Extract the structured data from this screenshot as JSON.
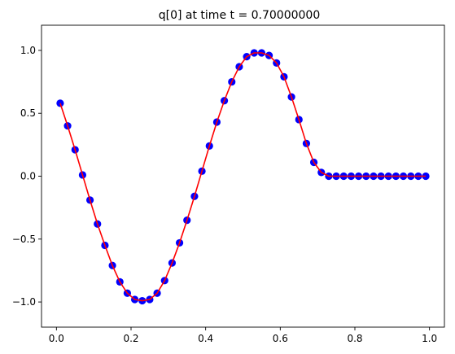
{
  "chart_data": {
    "type": "scatter",
    "title": "q[0] at time t =      0.70000000",
    "xlabel": "",
    "ylabel": "",
    "xlim": [
      -0.04,
      1.04
    ],
    "ylim": [
      -1.2,
      1.2
    ],
    "xticks": [
      0.0,
      0.2,
      0.4,
      0.6,
      0.8,
      1.0
    ],
    "xtick_labels": [
      "0.0",
      "0.2",
      "0.4",
      "0.6",
      "0.8",
      "1.0"
    ],
    "yticks": [
      -1.0,
      -0.5,
      0.0,
      0.5,
      1.0
    ],
    "ytick_labels": [
      "−1.0",
      "−0.5",
      "0.0",
      "0.5",
      "1.0"
    ],
    "grid": false,
    "series": [
      {
        "style": "markers",
        "color": "#0000ff",
        "x": [
          0.01,
          0.03,
          0.05,
          0.07,
          0.09,
          0.11,
          0.13,
          0.15,
          0.17,
          0.19,
          0.21,
          0.23,
          0.25,
          0.27,
          0.29,
          0.31,
          0.33,
          0.35,
          0.37,
          0.39,
          0.41,
          0.43,
          0.45,
          0.47,
          0.49,
          0.51,
          0.53,
          0.55,
          0.57,
          0.59,
          0.61,
          0.63,
          0.65,
          0.67,
          0.69,
          0.71,
          0.73,
          0.75,
          0.77,
          0.79,
          0.81,
          0.83,
          0.85,
          0.87,
          0.89,
          0.91,
          0.93,
          0.95,
          0.97,
          0.99
        ],
        "y": [
          0.58,
          0.4,
          0.21,
          0.01,
          -0.19,
          -0.38,
          -0.55,
          -0.71,
          -0.84,
          -0.93,
          -0.98,
          -0.99,
          -0.98,
          -0.93,
          -0.83,
          -0.69,
          -0.53,
          -0.35,
          -0.16,
          0.04,
          0.24,
          0.43,
          0.6,
          0.75,
          0.87,
          0.95,
          0.98,
          0.98,
          0.96,
          0.9,
          0.79,
          0.63,
          0.45,
          0.26,
          0.11,
          0.03,
          0.0,
          0.0,
          0.0,
          0.0,
          0.0,
          0.0,
          0.0,
          0.0,
          0.0,
          0.0,
          0.0,
          0.0,
          0.0,
          0.0
        ]
      },
      {
        "style": "line",
        "color": "#ff0000",
        "x": [
          0.01,
          0.03,
          0.05,
          0.07,
          0.09,
          0.11,
          0.13,
          0.15,
          0.17,
          0.19,
          0.21,
          0.23,
          0.25,
          0.27,
          0.29,
          0.31,
          0.33,
          0.35,
          0.37,
          0.39,
          0.41,
          0.43,
          0.45,
          0.47,
          0.49,
          0.51,
          0.53,
          0.55,
          0.57,
          0.59,
          0.61,
          0.63,
          0.65,
          0.67,
          0.69,
          0.71,
          0.73,
          0.75,
          0.77,
          0.79,
          0.81,
          0.83,
          0.85,
          0.87,
          0.89,
          0.91,
          0.93,
          0.95,
          0.97,
          0.99
        ],
        "y": [
          0.58,
          0.4,
          0.21,
          0.01,
          -0.19,
          -0.38,
          -0.55,
          -0.71,
          -0.84,
          -0.93,
          -0.98,
          -0.99,
          -0.98,
          -0.93,
          -0.83,
          -0.69,
          -0.53,
          -0.35,
          -0.16,
          0.04,
          0.24,
          0.43,
          0.6,
          0.75,
          0.87,
          0.95,
          0.98,
          0.98,
          0.96,
          0.9,
          0.79,
          0.63,
          0.45,
          0.26,
          0.11,
          0.03,
          0.0,
          0.0,
          0.0,
          0.0,
          0.0,
          0.0,
          0.0,
          0.0,
          0.0,
          0.0,
          0.0,
          0.0,
          0.0,
          0.0
        ]
      }
    ]
  }
}
